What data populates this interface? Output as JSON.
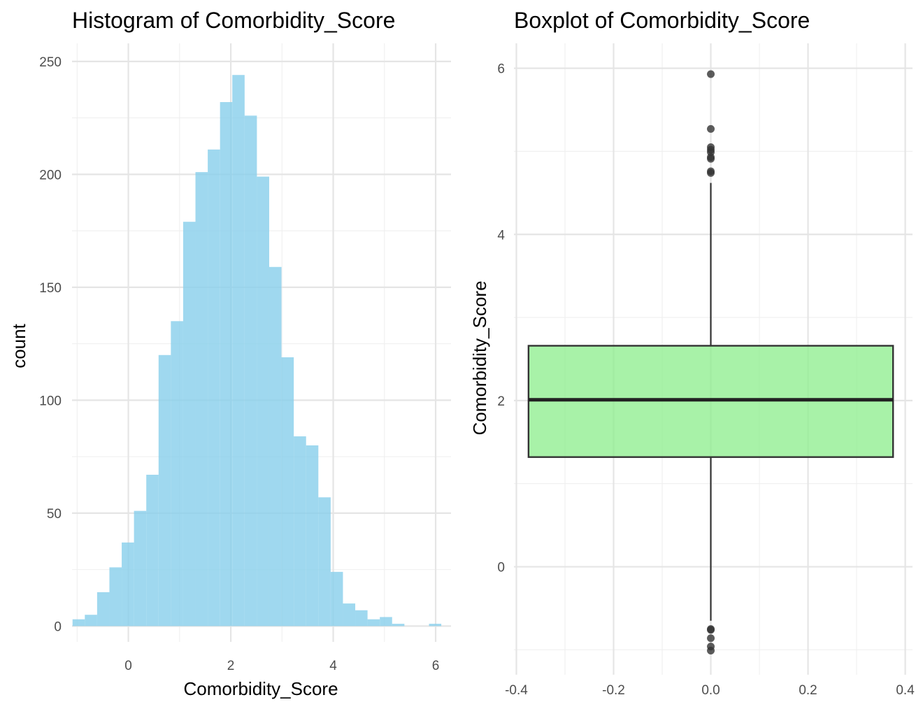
{
  "chart_data": [
    {
      "type": "bar",
      "title": "Histogram of Comorbidity_Score",
      "xlabel": "Comorbidity_Score",
      "ylabel": "count",
      "xlim": [
        -1.1,
        6.3
      ],
      "ylim": [
        -7,
        258
      ],
      "x_ticks": [
        0,
        2,
        4,
        6
      ],
      "y_ticks": [
        0,
        50,
        100,
        150,
        200,
        250
      ],
      "grid": true,
      "bar_color": "#87CEEB",
      "bin_width": 0.24,
      "bins": [
        {
          "x0": -1.09,
          "count": 3
        },
        {
          "x0": -0.85,
          "count": 5
        },
        {
          "x0": -0.61,
          "count": 15
        },
        {
          "x0": -0.37,
          "count": 26
        },
        {
          "x0": -0.13,
          "count": 37
        },
        {
          "x0": 0.11,
          "count": 51
        },
        {
          "x0": 0.35,
          "count": 67
        },
        {
          "x0": 0.59,
          "count": 120
        },
        {
          "x0": 0.83,
          "count": 135
        },
        {
          "x0": 1.07,
          "count": 179
        },
        {
          "x0": 1.31,
          "count": 201
        },
        {
          "x0": 1.55,
          "count": 211
        },
        {
          "x0": 1.79,
          "count": 232
        },
        {
          "x0": 2.03,
          "count": 244
        },
        {
          "x0": 2.27,
          "count": 226
        },
        {
          "x0": 2.51,
          "count": 199
        },
        {
          "x0": 2.75,
          "count": 159
        },
        {
          "x0": 2.99,
          "count": 119
        },
        {
          "x0": 3.23,
          "count": 84
        },
        {
          "x0": 3.47,
          "count": 80
        },
        {
          "x0": 3.71,
          "count": 57
        },
        {
          "x0": 3.95,
          "count": 24
        },
        {
          "x0": 4.19,
          "count": 10
        },
        {
          "x0": 4.43,
          "count": 7
        },
        {
          "x0": 4.67,
          "count": 3
        },
        {
          "x0": 4.91,
          "count": 4
        },
        {
          "x0": 5.15,
          "count": 1
        },
        {
          "x0": 5.39,
          "count": 0
        },
        {
          "x0": 5.63,
          "count": 0
        },
        {
          "x0": 5.87,
          "count": 1
        }
      ]
    },
    {
      "type": "box",
      "title": "Boxplot of Comorbidity_Score",
      "xlabel": "",
      "ylabel": "Comorbidity_Score",
      "xlim": [
        -0.405,
        0.415
      ],
      "ylim": [
        -1.3,
        6.3
      ],
      "x_ticks": [
        -0.4,
        -0.2,
        0.0,
        0.2,
        0.4
      ],
      "x_tick_labels": [
        "-0.4",
        "-0.2",
        "0.0",
        "0.2",
        "0.4"
      ],
      "y_ticks": [
        0,
        2,
        4,
        6
      ],
      "grid": true,
      "box_color": "#90EE90",
      "box": {
        "x_center": 0.0,
        "x_left": -0.375,
        "x_right": 0.375,
        "q1": 1.32,
        "median": 2.01,
        "q3": 2.66,
        "whisker_low": -0.65,
        "whisker_high": 4.62
      },
      "outliers": [
        5.93,
        5.27,
        5.05,
        5.02,
        4.99,
        4.93,
        4.91,
        4.76,
        4.74,
        -0.75,
        -0.76,
        -0.86,
        -0.96,
        -1.01
      ]
    }
  ]
}
